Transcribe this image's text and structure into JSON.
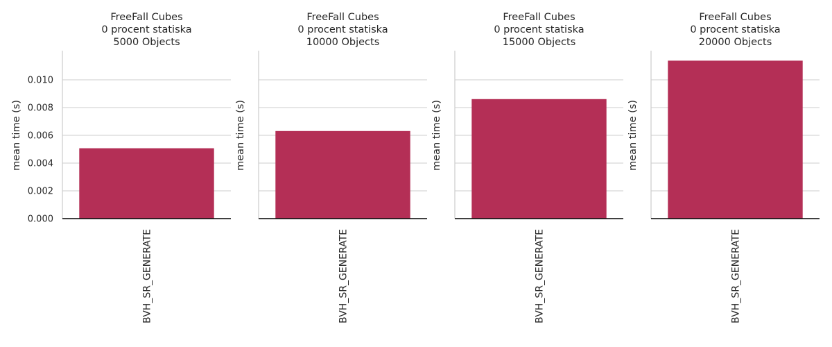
{
  "chart_data": [
    {
      "type": "bar",
      "title": [
        "FreeFall Cubes",
        "0 procent statiska",
        "5000 Objects"
      ],
      "xlabel": "",
      "ylabel": "mean time (s)",
      "categories": [
        "BVH_SR_GENERATE"
      ],
      "values": [
        0.00507
      ],
      "ylim": [
        0,
        0.0121
      ],
      "yticks": [
        "0.000",
        "0.002",
        "0.004",
        "0.006",
        "0.008",
        "0.010"
      ],
      "show_ytick_labels": true,
      "grid": "horizontal"
    },
    {
      "type": "bar",
      "title": [
        "FreeFall Cubes",
        "0 procent statiska",
        "10000 Objects"
      ],
      "xlabel": "",
      "ylabel": "mean time (s)",
      "categories": [
        "BVH_SR_GENERATE"
      ],
      "values": [
        0.00631
      ],
      "ylim": [
        0,
        0.0121
      ],
      "yticks": [
        "0.000",
        "0.002",
        "0.004",
        "0.006",
        "0.008",
        "0.010"
      ],
      "show_ytick_labels": false,
      "grid": "horizontal"
    },
    {
      "type": "bar",
      "title": [
        "FreeFall Cubes",
        "0 procent statiska",
        "15000 Objects"
      ],
      "xlabel": "",
      "ylabel": "mean time (s)",
      "categories": [
        "BVH_SR_GENERATE"
      ],
      "values": [
        0.00861
      ],
      "ylim": [
        0,
        0.0121
      ],
      "yticks": [
        "0.000",
        "0.002",
        "0.004",
        "0.006",
        "0.008",
        "0.010"
      ],
      "show_ytick_labels": false,
      "grid": "horizontal"
    },
    {
      "type": "bar",
      "title": [
        "FreeFall Cubes",
        "0 procent statiska",
        "20000 Objects"
      ],
      "xlabel": "",
      "ylabel": "mean time (s)",
      "categories": [
        "BVH_SR_GENERATE"
      ],
      "values": [
        0.01138
      ],
      "ylim": [
        0,
        0.0121
      ],
      "yticks": [
        "0.000",
        "0.002",
        "0.004",
        "0.006",
        "0.008",
        "0.010"
      ],
      "show_ytick_labels": false,
      "grid": "horizontal"
    }
  ],
  "colors": {
    "bar": "#b42f56",
    "grid": "#cccccc",
    "axis": "#000000",
    "text": "#262626"
  }
}
